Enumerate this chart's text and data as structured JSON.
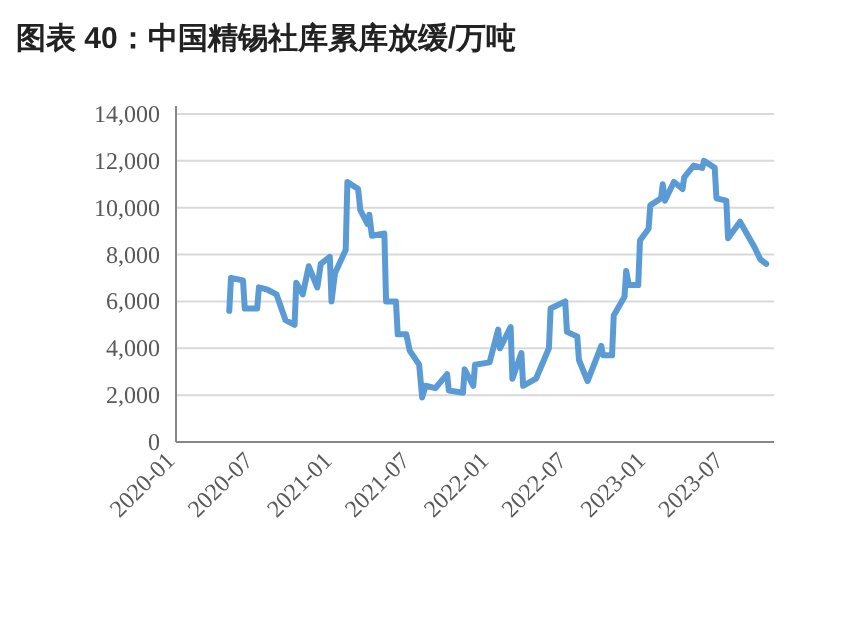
{
  "chart_data": {
    "type": "line",
    "title": "图表 40：中国精锡社库累库放缓/万吨",
    "x": [
      "2020-05-04",
      "2020-05-08",
      "2020-06-05",
      "2020-06-09",
      "2020-07-08",
      "2020-07-12",
      "2020-08-01",
      "2020-08-22",
      "2020-09-12",
      "2020-10-03",
      "2020-10-07",
      "2020-10-22",
      "2020-11-05",
      "2020-11-25",
      "2020-12-03",
      "2020-12-24",
      "2020-12-28",
      "2021-01-05",
      "2021-01-30",
      "2021-02-03",
      "2021-02-28",
      "2021-03-05",
      "2021-03-22",
      "2021-03-26",
      "2021-04-01",
      "2021-04-30",
      "2021-05-04",
      "2021-05-27",
      "2021-05-31",
      "2021-06-20",
      "2021-06-28",
      "2021-07-20",
      "2021-07-27",
      "2021-08-04",
      "2021-08-27",
      "2021-09-23",
      "2021-09-27",
      "2021-10-30",
      "2021-11-03",
      "2021-11-23",
      "2021-11-27",
      "2021-12-31",
      "2022-01-20",
      "2022-01-24",
      "2022-02-18",
      "2022-02-22",
      "2022-03-15",
      "2022-03-19",
      "2022-04-18",
      "2022-05-18",
      "2022-05-22",
      "2022-06-25",
      "2022-06-29",
      "2022-07-23",
      "2022-07-27",
      "2022-08-16",
      "2022-09-17",
      "2022-09-21",
      "2022-10-12",
      "2022-10-16",
      "2022-11-10",
      "2022-11-14",
      "2022-11-20",
      "2022-12-12",
      "2022-12-16",
      "2023-01-05",
      "2023-01-09",
      "2023-02-03",
      "2023-02-07",
      "2023-02-12",
      "2023-03-05",
      "2023-03-25",
      "2023-03-29",
      "2023-04-20",
      "2023-05-10",
      "2023-05-14",
      "2023-06-08",
      "2023-06-12",
      "2023-07-05",
      "2023-07-09",
      "2023-08-06",
      "2023-09-09",
      "2023-09-22",
      "2023-10-06"
    ],
    "series": [
      {
        "color": "#5b9bd5",
        "values": [
          5600,
          7000,
          6900,
          5700,
          5700,
          6600,
          6500,
          6300,
          5200,
          5000,
          6800,
          6300,
          7500,
          6600,
          7600,
          7900,
          6000,
          7200,
          8200,
          11100,
          10800,
          9900,
          9300,
          9700,
          8800,
          8900,
          6000,
          6000,
          4600,
          4600,
          3900,
          3300,
          1900,
          2400,
          2300,
          2900,
          2200,
          2100,
          3100,
          2400,
          3300,
          3400,
          4800,
          4000,
          4900,
          2700,
          3800,
          2400,
          2700,
          4000,
          5700,
          6000,
          4700,
          4500,
          3500,
          2600,
          4100,
          3700,
          3700,
          5400,
          6200,
          7300,
          6700,
          6700,
          8600,
          9100,
          10100,
          10400,
          11000,
          10300,
          11100,
          10800,
          11300,
          11800,
          11700,
          12000,
          11700,
          10400,
          10300,
          8700,
          9400,
          8300,
          7800,
          7600
        ]
      }
    ],
    "xlim": [
      "2020-01-01",
      "2023-10-24"
    ],
    "xticks": [
      "2020-01",
      "2020-07",
      "2021-01",
      "2021-07",
      "2022-01",
      "2022-07",
      "2023-01",
      "2023-07"
    ],
    "ylim": [
      0,
      14000
    ],
    "yticks": [
      {
        "value": 0,
        "label": "0"
      },
      {
        "value": 2000,
        "label": "2,000"
      },
      {
        "value": 4000,
        "label": "4,000"
      },
      {
        "value": 6000,
        "label": "6,000"
      },
      {
        "value": 8000,
        "label": "8,000"
      },
      {
        "value": 10000,
        "label": "10,000"
      },
      {
        "value": 12000,
        "label": "12,000"
      },
      {
        "value": 14000,
        "label": "14,000"
      }
    ],
    "grid": "y",
    "line_style": "solid",
    "marker": "none"
  }
}
